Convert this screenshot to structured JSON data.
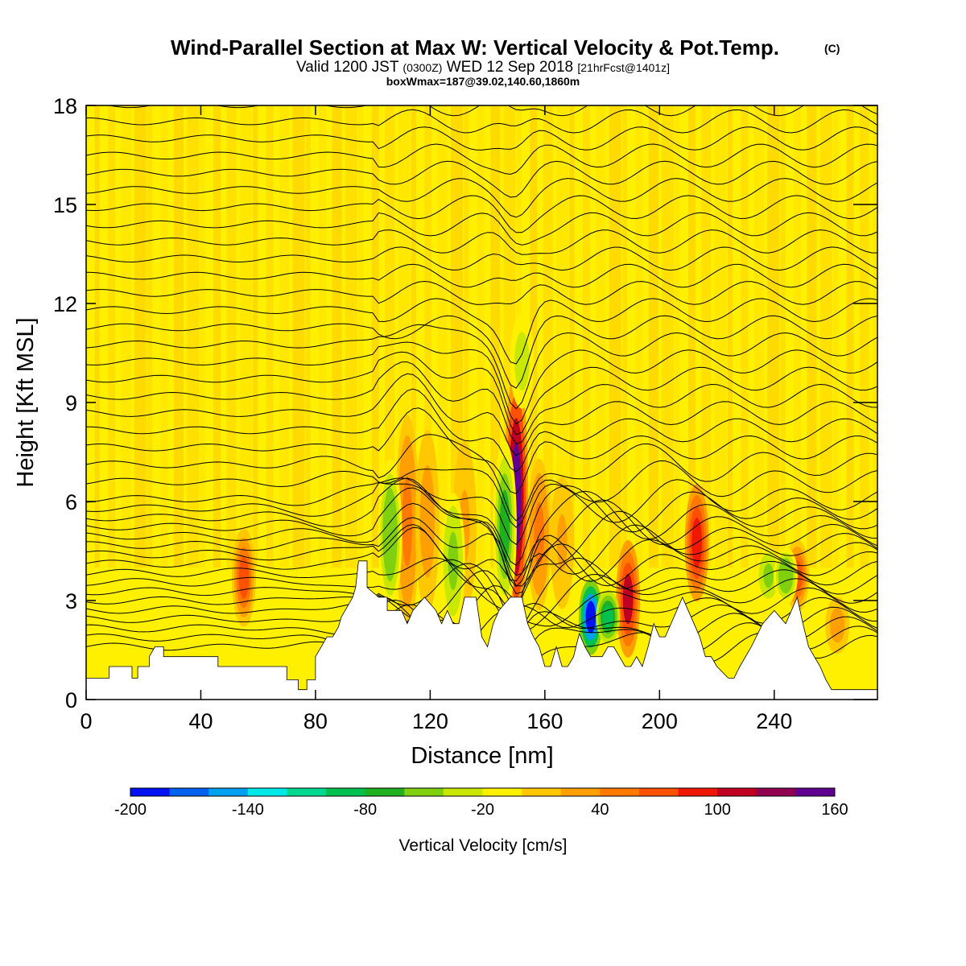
{
  "chart_data": {
    "type": "heatmap",
    "title": "Wind-Parallel Section at Max W: Vertical Velocity & Pot.Temp.",
    "title_tag": "(C)",
    "subtitle": {
      "part1": "Valid 1200 JST",
      "part2": "(0300Z)",
      "part3": "WED 12 Sep 2018",
      "part4": "[21hrFcst@1401z]"
    },
    "subtitle2": "boxWmax=187@39.02,140.60,1860m",
    "xlabel": "Distance [nm]",
    "ylabel": "Height [Kft MSL]",
    "xlim": [
      0,
      276
    ],
    "ylim": [
      0,
      18
    ],
    "xticks": [
      "0",
      "40",
      "80",
      "120",
      "160",
      "200",
      "240"
    ],
    "xtick_values": [
      0,
      40,
      80,
      120,
      160,
      200,
      240
    ],
    "yticks": [
      "0",
      "3",
      "6",
      "9",
      "12",
      "15",
      "18"
    ],
    "ytick_values": [
      0,
      3,
      6,
      9,
      12,
      15,
      18
    ],
    "colorbar": {
      "label": "Vertical Velocity [cm/s]",
      "tick_labels": [
        "-200",
        "-140",
        "-80",
        "-20",
        "40",
        "100",
        "160"
      ],
      "tick_values": [
        -200,
        -140,
        -80,
        -20,
        40,
        100,
        160
      ],
      "range": [
        -200,
        160
      ],
      "colors": [
        "#0012f0",
        "#0060f0",
        "#00a0f0",
        "#00e8e8",
        "#00d890",
        "#00c050",
        "#20b020",
        "#80d010",
        "#c8e800",
        "#fff000",
        "#ffc800",
        "#ffa000",
        "#ff7800",
        "#ff5000",
        "#f01800",
        "#c00020",
        "#900050",
        "#600090"
      ]
    },
    "background_value_band": "-10 to 10 cm/s",
    "terrain": [
      [
        0,
        0.65
      ],
      [
        8,
        0.65
      ],
      [
        8,
        1.0
      ],
      [
        16,
        1.0
      ],
      [
        16,
        0.65
      ],
      [
        18,
        0.65
      ],
      [
        18,
        1.0
      ],
      [
        22,
        1.0
      ],
      [
        22,
        1.3
      ],
      [
        24,
        1.6
      ],
      [
        27,
        1.6
      ],
      [
        27,
        1.3
      ],
      [
        40,
        1.3
      ],
      [
        46,
        1.3
      ],
      [
        46,
        1.0
      ],
      [
        70,
        1.0
      ],
      [
        70,
        0.6
      ],
      [
        74,
        0.6
      ],
      [
        74,
        0.3
      ],
      [
        77,
        0.3
      ],
      [
        77,
        0.6
      ],
      [
        80,
        0.6
      ],
      [
        80,
        1.3
      ],
      [
        82,
        1.6
      ],
      [
        84,
        1.9
      ],
      [
        86,
        1.9
      ],
      [
        88,
        2.2
      ],
      [
        89,
        2.5
      ],
      [
        91,
        2.8
      ],
      [
        93,
        3.1
      ],
      [
        94,
        3.4
      ],
      [
        95,
        4.2
      ],
      [
        98,
        4.2
      ],
      [
        98,
        3.4
      ],
      [
        102,
        3.1
      ],
      [
        105,
        3.1
      ],
      [
        105,
        2.7
      ],
      [
        110,
        2.7
      ],
      [
        112,
        2.3
      ],
      [
        114,
        2.7
      ],
      [
        118,
        3.1
      ],
      [
        122,
        2.7
      ],
      [
        124,
        2.3
      ],
      [
        126,
        2.7
      ],
      [
        128,
        2.3
      ],
      [
        130,
        2.3
      ],
      [
        132,
        3.1
      ],
      [
        136,
        3.1
      ],
      [
        138,
        1.9
      ],
      [
        140,
        1.6
      ],
      [
        142,
        2.3
      ],
      [
        144,
        2.7
      ],
      [
        148,
        3.1
      ],
      [
        150,
        3.1
      ],
      [
        152,
        3.1
      ],
      [
        154,
        2.3
      ],
      [
        156,
        1.9
      ],
      [
        158,
        1.6
      ],
      [
        160,
        1.0
      ],
      [
        162,
        1.0
      ],
      [
        164,
        1.6
      ],
      [
        166,
        1.0
      ],
      [
        168,
        1.0
      ],
      [
        170,
        1.3
      ],
      [
        172,
        2.0
      ],
      [
        174,
        1.6
      ],
      [
        176,
        1.3
      ],
      [
        180,
        1.3
      ],
      [
        182,
        1.6
      ],
      [
        184,
        1.6
      ],
      [
        186,
        1.3
      ],
      [
        188,
        1.0
      ],
      [
        190,
        1.0
      ],
      [
        192,
        1.3
      ],
      [
        194,
        1.0
      ],
      [
        196,
        1.6
      ],
      [
        198,
        2.3
      ],
      [
        200,
        1.9
      ],
      [
        202,
        1.9
      ],
      [
        204,
        2.3
      ],
      [
        206,
        2.7
      ],
      [
        208,
        3.1
      ],
      [
        210,
        2.7
      ],
      [
        212,
        2.3
      ],
      [
        214,
        1.9
      ],
      [
        216,
        1.3
      ],
      [
        218,
        1.3
      ],
      [
        220,
        1.0
      ],
      [
        224,
        0.65
      ],
      [
        226,
        0.65
      ],
      [
        228,
        1.0
      ],
      [
        232,
        1.6
      ],
      [
        236,
        2.3
      ],
      [
        240,
        2.7
      ],
      [
        244,
        2.3
      ],
      [
        246,
        2.7
      ],
      [
        248,
        3.1
      ],
      [
        250,
        2.3
      ],
      [
        252,
        1.6
      ],
      [
        254,
        1.3
      ],
      [
        256,
        1.0
      ],
      [
        258,
        0.6
      ],
      [
        260,
        0.3
      ],
      [
        276,
        0.3
      ]
    ],
    "features": [
      {
        "x": 55,
        "z0": 2.4,
        "z1": 5.0,
        "w": 70
      },
      {
        "x": 112,
        "z0": 2.6,
        "z1": 8.2,
        "w": 40
      },
      {
        "x": 119,
        "z0": 3.0,
        "z1": 7.8,
        "w": 30
      },
      {
        "x": 132,
        "z0": 3.0,
        "z1": 7.5,
        "w": 20
      },
      {
        "x": 150,
        "z0": 2.8,
        "z1": 9.5,
        "w": 140
      },
      {
        "x": 158,
        "z0": 3.0,
        "z1": 7.0,
        "w": 40
      },
      {
        "x": 166,
        "z0": 3.0,
        "z1": 6.5,
        "w": 20
      },
      {
        "x": 189,
        "z0": 1.5,
        "z1": 4.6,
        "w": 100
      },
      {
        "x": 213,
        "z0": 3.2,
        "z1": 6.3,
        "w": 80
      },
      {
        "x": 248,
        "z0": 2.8,
        "z1": 4.7,
        "w": 60
      },
      {
        "x": 262,
        "z0": 1.5,
        "z1": 3.0,
        "w": 30
      },
      {
        "x": 106,
        "z0": 3.0,
        "z1": 7.0,
        "w": -60
      },
      {
        "x": 128,
        "z0": 2.4,
        "z1": 6.0,
        "w": -50
      },
      {
        "x": 146,
        "z0": 3.0,
        "z1": 7.5,
        "w": -70
      },
      {
        "x": 152,
        "z0": 9.0,
        "z1": 11.5,
        "w": -40
      },
      {
        "x": 176,
        "z0": 1.5,
        "z1": 3.5,
        "w": -190
      },
      {
        "x": 182,
        "z0": 1.8,
        "z1": 3.2,
        "w": -90
      },
      {
        "x": 238,
        "z0": 3.0,
        "z1": 4.5,
        "w": -50
      },
      {
        "x": 244,
        "z0": 3.0,
        "z1": 4.5,
        "w": -60
      }
    ]
  }
}
